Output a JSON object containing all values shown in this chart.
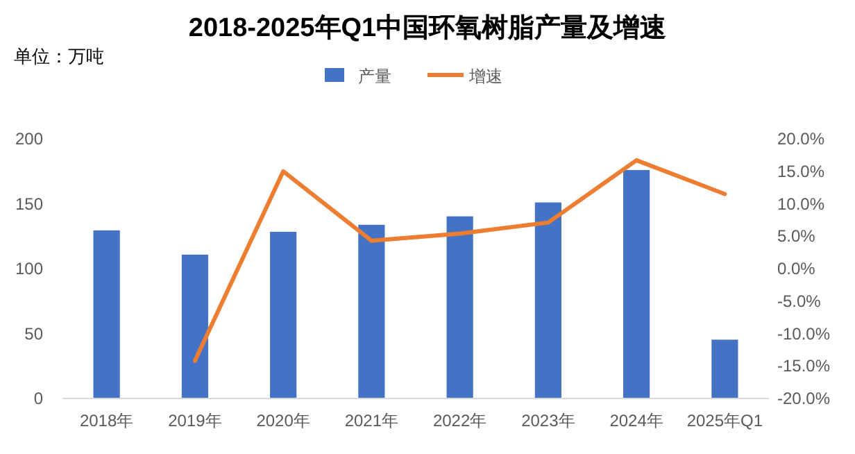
{
  "chart_data": {
    "type": "bar",
    "title": "2018-2025年Q1中国环氧树脂产量及增速",
    "annotations": [
      "单位：万吨"
    ],
    "categories": [
      "2018年",
      "2019年",
      "2020年",
      "2021年",
      "2022年",
      "2023年",
      "2024年",
      "2025年Q1"
    ],
    "series": [
      {
        "name": "产量",
        "color": "#4472c4",
        "values": [
          129.5,
          110.8,
          128.4,
          133.8,
          140.3,
          151,
          176,
          45.3
        ]
      },
      {
        "name": "增速",
        "type": "line",
        "axis": "y2",
        "color": "#ed7d31",
        "values": [
          null,
          -14.2,
          15.0,
          4.3,
          5.4,
          7.1,
          16.7,
          11.5
        ]
      }
    ],
    "ylim": [
      0,
      200
    ],
    "yticks": [
      0,
      50,
      100,
      150,
      200
    ],
    "y2lim": [
      -20,
      20
    ],
    "y2ticks": [
      {
        "value": -20,
        "label": "-20.0%"
      },
      {
        "value": -15,
        "label": "-15.0%"
      },
      {
        "value": -10,
        "label": "-10.0%"
      },
      {
        "value": -5,
        "label": "-5.0%"
      },
      {
        "value": 0,
        "label": "0.0%"
      },
      {
        "value": 5,
        "label": "5.0%"
      },
      {
        "value": 10,
        "label": "10.0%"
      },
      {
        "value": 15,
        "label": "15.0%"
      },
      {
        "value": 20,
        "label": "20.0%"
      }
    ],
    "legend": "top",
    "marker": "none",
    "line_style": "solid",
    "grid": false
  }
}
